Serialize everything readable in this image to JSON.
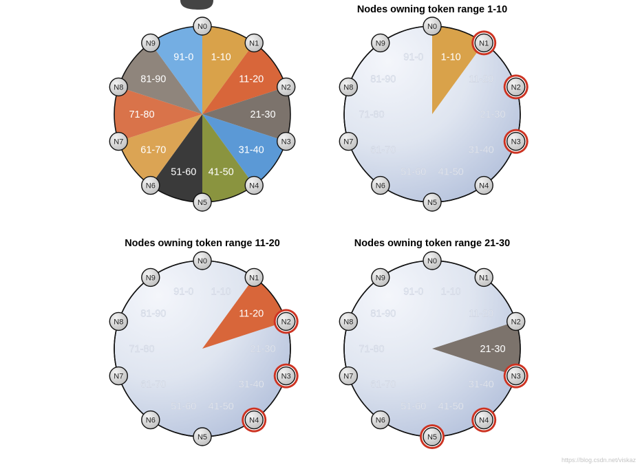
{
  "panels": [
    {
      "title": "",
      "highlight_range": null,
      "highlight_nodes": []
    },
    {
      "title": "Nodes owning token range 1-10",
      "highlight_range": 0,
      "highlight_nodes": [
        1,
        2,
        3
      ]
    },
    {
      "title": "Nodes owning token range 11-20",
      "highlight_range": 1,
      "highlight_nodes": [
        2,
        3,
        4
      ]
    },
    {
      "title": "Nodes owning token range 21-30",
      "highlight_range": 2,
      "highlight_nodes": [
        3,
        4,
        5
      ]
    }
  ],
  "nodes": [
    "N0",
    "N1",
    "N2",
    "N3",
    "N4",
    "N5",
    "N6",
    "N7",
    "N8",
    "N9"
  ],
  "ranges": [
    {
      "label": "1-10",
      "color": "#d9a24a"
    },
    {
      "label": "11-20",
      "color": "#d8663a"
    },
    {
      "label": "21-30",
      "color": "#7c736c"
    },
    {
      "label": "31-40",
      "color": "#5b99d6"
    },
    {
      "label": "41-50",
      "color": "#8a943f"
    },
    {
      "label": "51-60",
      "color": "#3a3a3a"
    },
    {
      "label": "61-70",
      "color": "#dba454"
    },
    {
      "label": "71-80",
      "color": "#d9734a"
    },
    {
      "label": "81-90",
      "color": "#8f857c"
    },
    {
      "label": "91-0",
      "color": "#74aee3"
    }
  ],
  "colors": {
    "ring_fill_light": "#f4f6fb",
    "ring_fill_dark": "#a8b7d6",
    "ring_stroke": "#111111",
    "node_fill": "#d6d6d6",
    "node_stroke": "#111111",
    "highlight_stroke": "#cc3322",
    "faded_label": "#e7ebf3",
    "solid_label": "#ffffff"
  },
  "watermark": "https://blog.csdn.net/viskaz"
}
